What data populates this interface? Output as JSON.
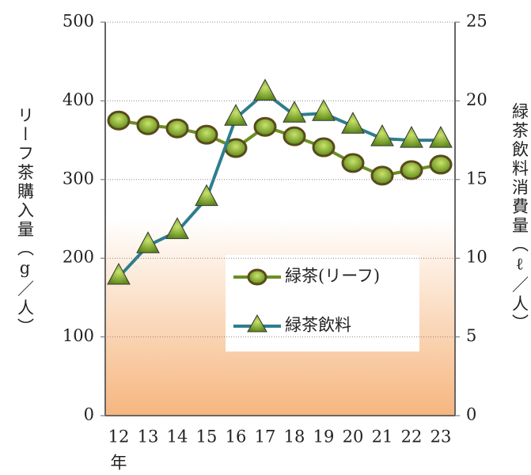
{
  "chart_data": {
    "type": "line",
    "categories": [
      "12",
      "13",
      "14",
      "15",
      "16",
      "17",
      "18",
      "19",
      "20",
      "21",
      "22",
      "23"
    ],
    "x_label": "年",
    "y_label": "リーフ茶購入量（g／人）",
    "y2_label": "緑茶飲料消費量（ℓ／人）",
    "series": [
      {
        "name": "緑茶(リーフ)",
        "color": "#6b8e23",
        "marker": "circle",
        "values": [
          375,
          369,
          365,
          357,
          340,
          367,
          355,
          341,
          321,
          305,
          312,
          319
        ]
      },
      {
        "name": "緑茶飲料",
        "color": "#2f7d8f",
        "marker": "triangle",
        "axis": "y2",
        "values": [
          8.8,
          10.8,
          11.7,
          13.8,
          18.9,
          20.5,
          19.1,
          19.2,
          18.4,
          17.6,
          17.5,
          17.5
        ]
      }
    ],
    "ylim": [
      0,
      500
    ],
    "yticks": [
      0,
      100,
      200,
      300,
      400,
      500
    ],
    "y2lim": [
      0,
      25
    ],
    "y2ticks": [
      0,
      5,
      10,
      15,
      20,
      25
    ],
    "grid": true
  }
}
